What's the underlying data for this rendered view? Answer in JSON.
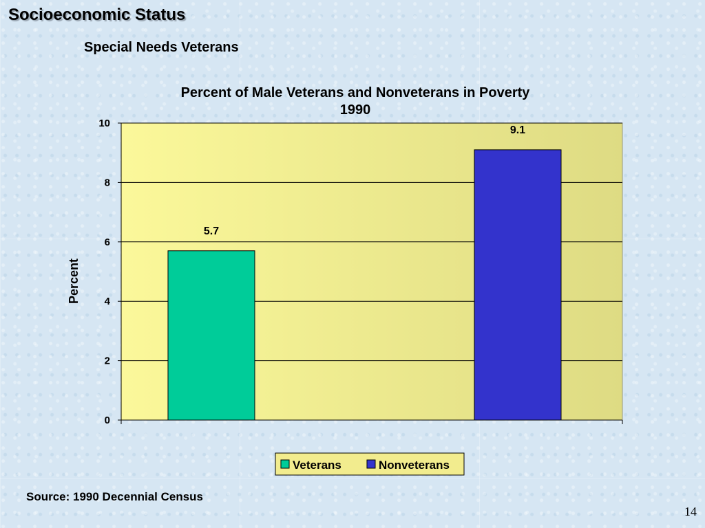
{
  "slide": {
    "title": "Socioeconomic Status",
    "subtitle": "Special Needs Veterans",
    "source": "Source:  1990 Decennial Census",
    "page_number": "14"
  },
  "chart_data": {
    "type": "bar",
    "title_lines": [
      "Percent of Male Veterans and Nonveterans in Poverty",
      "1990"
    ],
    "ylabel": "Percent",
    "xlabel": "",
    "ylim": [
      0,
      10
    ],
    "yticks": [
      0,
      2,
      4,
      6,
      8,
      10
    ],
    "grid": true,
    "legend_position": "bottom",
    "plot_background": "#f2ec8e",
    "series": [
      {
        "name": "Veterans",
        "values": [
          5.7
        ],
        "data_labels": [
          "5.7"
        ],
        "color": "#00cc99"
      },
      {
        "name": "Nonveterans",
        "values": [
          9.1
        ],
        "data_labels": [
          "9.1"
        ],
        "color": "#3333cc"
      }
    ]
  }
}
